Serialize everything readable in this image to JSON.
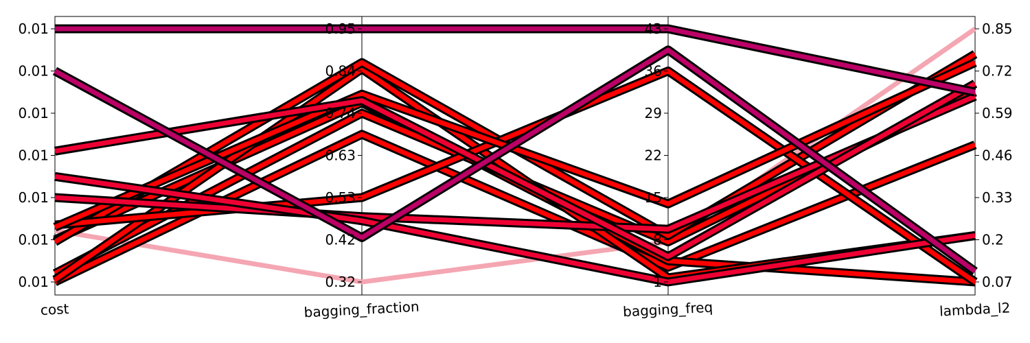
{
  "chart_data": {
    "type": "parallel_coordinates",
    "title": "",
    "axes": [
      {
        "name": "cost",
        "ticks": [
          "0.01",
          "0.01",
          "0.01",
          "0.01",
          "0.01",
          "0.01",
          "0.01"
        ]
      },
      {
        "name": "bagging_fraction",
        "ticks": [
          "0.32",
          "0.42",
          "0.53",
          "0.63",
          "0.74",
          "0.84",
          "0.95"
        ]
      },
      {
        "name": "bagging_freq",
        "ticks": [
          "1",
          "8",
          "15",
          "22",
          "29",
          "36",
          "43"
        ]
      },
      {
        "name": "lambda_l2",
        "ticks": [
          "0.07",
          "0.2",
          "0.33",
          "0.46",
          "0.59",
          "0.72",
          "0.85"
        ]
      }
    ],
    "series": [
      {
        "color": "#f4a6b2",
        "values": [
          1.22,
          0.0,
          0.95,
          6.0
        ]
      },
      {
        "color": "#ff0000",
        "values": [
          0.0,
          3.5,
          0.35,
          3.25
        ]
      },
      {
        "color": "#ff0000",
        "values": [
          1.0,
          4.25,
          0.5,
          0.0
        ]
      },
      {
        "color": "#ff0000",
        "values": [
          0.2,
          4.0,
          0.95,
          4.5
        ]
      },
      {
        "color": "#ff0000",
        "values": [
          0.05,
          5.05,
          0.1,
          1.1
        ]
      },
      {
        "color": "#ff0000",
        "values": [
          0.95,
          5.2,
          1.1,
          5.4
        ]
      },
      {
        "color": "#ff0000",
        "values": [
          1.35,
          2.0,
          5.0,
          0.0
        ]
      },
      {
        "color": "#ff0000",
        "values": [
          1.3,
          4.45,
          1.85,
          5.2
        ]
      },
      {
        "color": "#ee0033",
        "values": [
          2.0,
          1.55,
          1.25,
          4.4
        ]
      },
      {
        "color": "#ee0033",
        "values": [
          2.5,
          1.45,
          0.0,
          1.1
        ]
      },
      {
        "color": "#ee0033",
        "values": [
          3.1,
          4.3,
          0.6,
          4.7
        ]
      },
      {
        "color": "#bb0066",
        "values": [
          6.0,
          6.0,
          6.0,
          4.5
        ]
      },
      {
        "color": "#bb0066",
        "values": [
          5.0,
          1.05,
          5.5,
          0.25
        ]
      }
    ]
  }
}
